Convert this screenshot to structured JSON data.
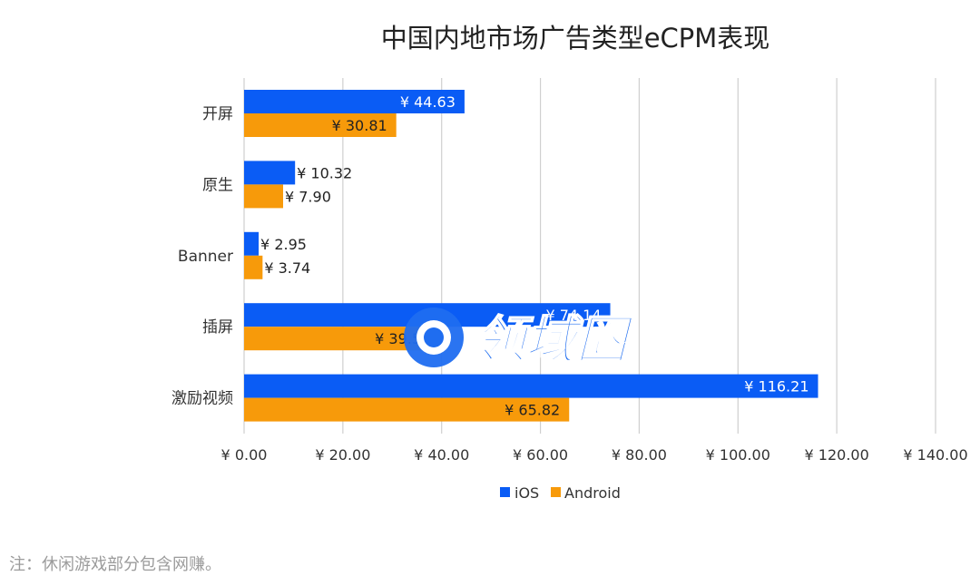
{
  "chart_data": {
    "type": "bar",
    "orientation": "horizontal",
    "title": "中国内地市场广告类型eCPM表现",
    "categories": [
      "开屏",
      "原生",
      "Banner",
      "插屏",
      "激励视频"
    ],
    "series": [
      {
        "name": "iOS",
        "color": "#0a5cf5",
        "values": [
          44.63,
          10.32,
          2.95,
          74.14,
          116.21
        ],
        "labels": [
          "¥ 44.63",
          "¥ 10.32",
          "¥ 2.95",
          "¥ 74.14",
          "¥ 116.21"
        ]
      },
      {
        "name": "Android",
        "color": "#f79a0a",
        "values": [
          30.81,
          7.9,
          3.74,
          39.54,
          65.82
        ],
        "labels": [
          "¥ 30.81",
          "¥ 7.90",
          "¥ 3.74",
          "¥ 39.54",
          "¥ 65.82"
        ]
      }
    ],
    "xlim": [
      0,
      140
    ],
    "xticks": [
      0,
      20,
      40,
      60,
      80,
      100,
      120,
      140
    ],
    "xtick_labels": [
      "¥ 0.00",
      "¥ 20.00",
      "¥ 40.00",
      "¥ 60.00",
      "¥ 80.00",
      "¥ 100.00",
      "¥ 120.00",
      "¥ 140.00"
    ],
    "grid": true,
    "legend": "bottom-center"
  },
  "note": "注：休闲游戏部分包含网赚。",
  "watermark": {
    "text": "领域圈",
    "color": "#1f6df0"
  }
}
